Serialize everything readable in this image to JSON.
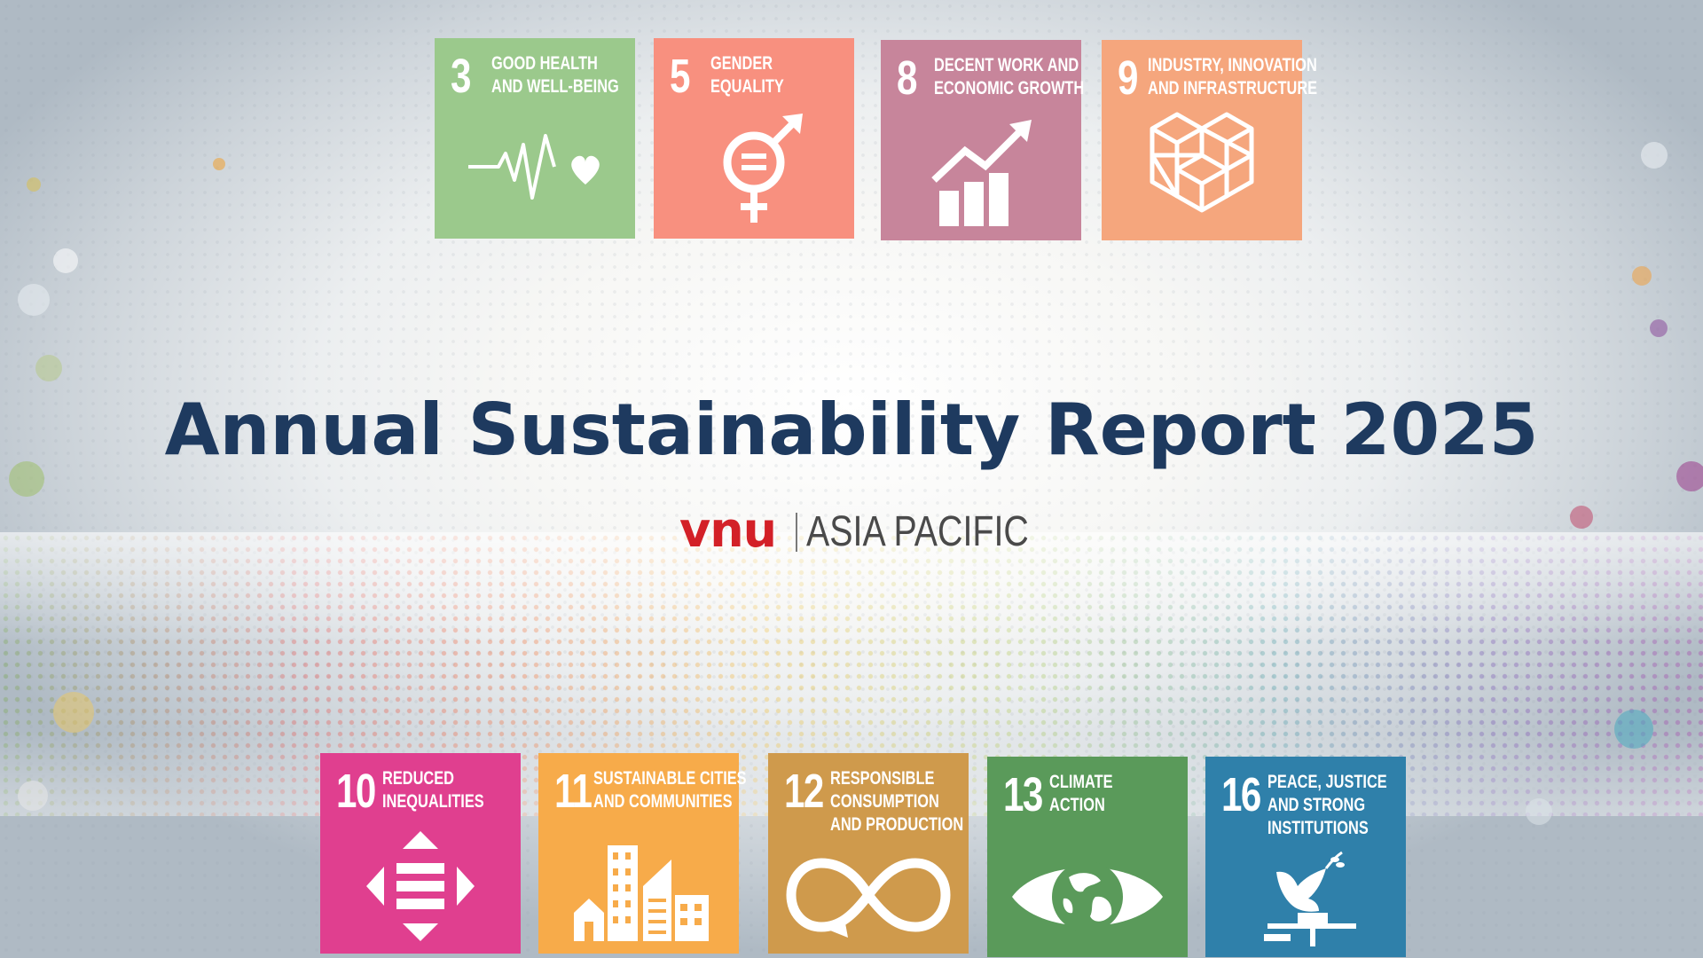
{
  "title": "Annual Sustainability Report 2025",
  "logo": {
    "brand": "vnu",
    "region": "ASIA PACIFIC",
    "brand_color": "#d32027"
  },
  "goals_top": [
    {
      "number": "3",
      "label_line1": "GOOD HEALTH",
      "label_line2": "AND WELL-BEING",
      "label_line3": "",
      "color": "#9bc98c",
      "icon": "heartbeat-icon"
    },
    {
      "number": "5",
      "label_line1": "GENDER",
      "label_line2": "EQUALITY",
      "label_line3": "",
      "color": "#f8907f",
      "icon": "gender-equality-icon"
    },
    {
      "number": "8",
      "label_line1": "DECENT WORK AND",
      "label_line2": "ECONOMIC GROWTH",
      "label_line3": "",
      "color": "#c7859b",
      "icon": "growth-chart-icon"
    },
    {
      "number": "9",
      "label_line1": "INDUSTRY, INNOVATION",
      "label_line2": "AND INFRASTRUCTURE",
      "label_line3": "",
      "color": "#f5a67d",
      "icon": "cubes-icon"
    }
  ],
  "goals_bottom": [
    {
      "number": "10",
      "label_line1": "REDUCED",
      "label_line2": "INEQUALITIES",
      "label_line3": "",
      "color": "#e03f8f",
      "icon": "arrows-equal-icon"
    },
    {
      "number": "11",
      "label_line1": "SUSTAINABLE CITIES",
      "label_line2": "AND COMMUNITIES",
      "label_line3": "",
      "color": "#f7ab4a",
      "icon": "city-buildings-icon"
    },
    {
      "number": "12",
      "label_line1": "RESPONSIBLE",
      "label_line2": "CONSUMPTION",
      "label_line3": "AND PRODUCTION",
      "color": "#cf9a4c",
      "icon": "infinity-loop-icon"
    },
    {
      "number": "13",
      "label_line1": "CLIMATE",
      "label_line2": "ACTION",
      "label_line3": "",
      "color": "#5a9a5a",
      "icon": "earth-eye-icon"
    },
    {
      "number": "16",
      "label_line1": "PEACE, JUSTICE",
      "label_line2": "AND STRONG",
      "label_line3": "INSTITUTIONS",
      "color": "#2f80aa",
      "icon": "dove-gavel-icon"
    }
  ]
}
